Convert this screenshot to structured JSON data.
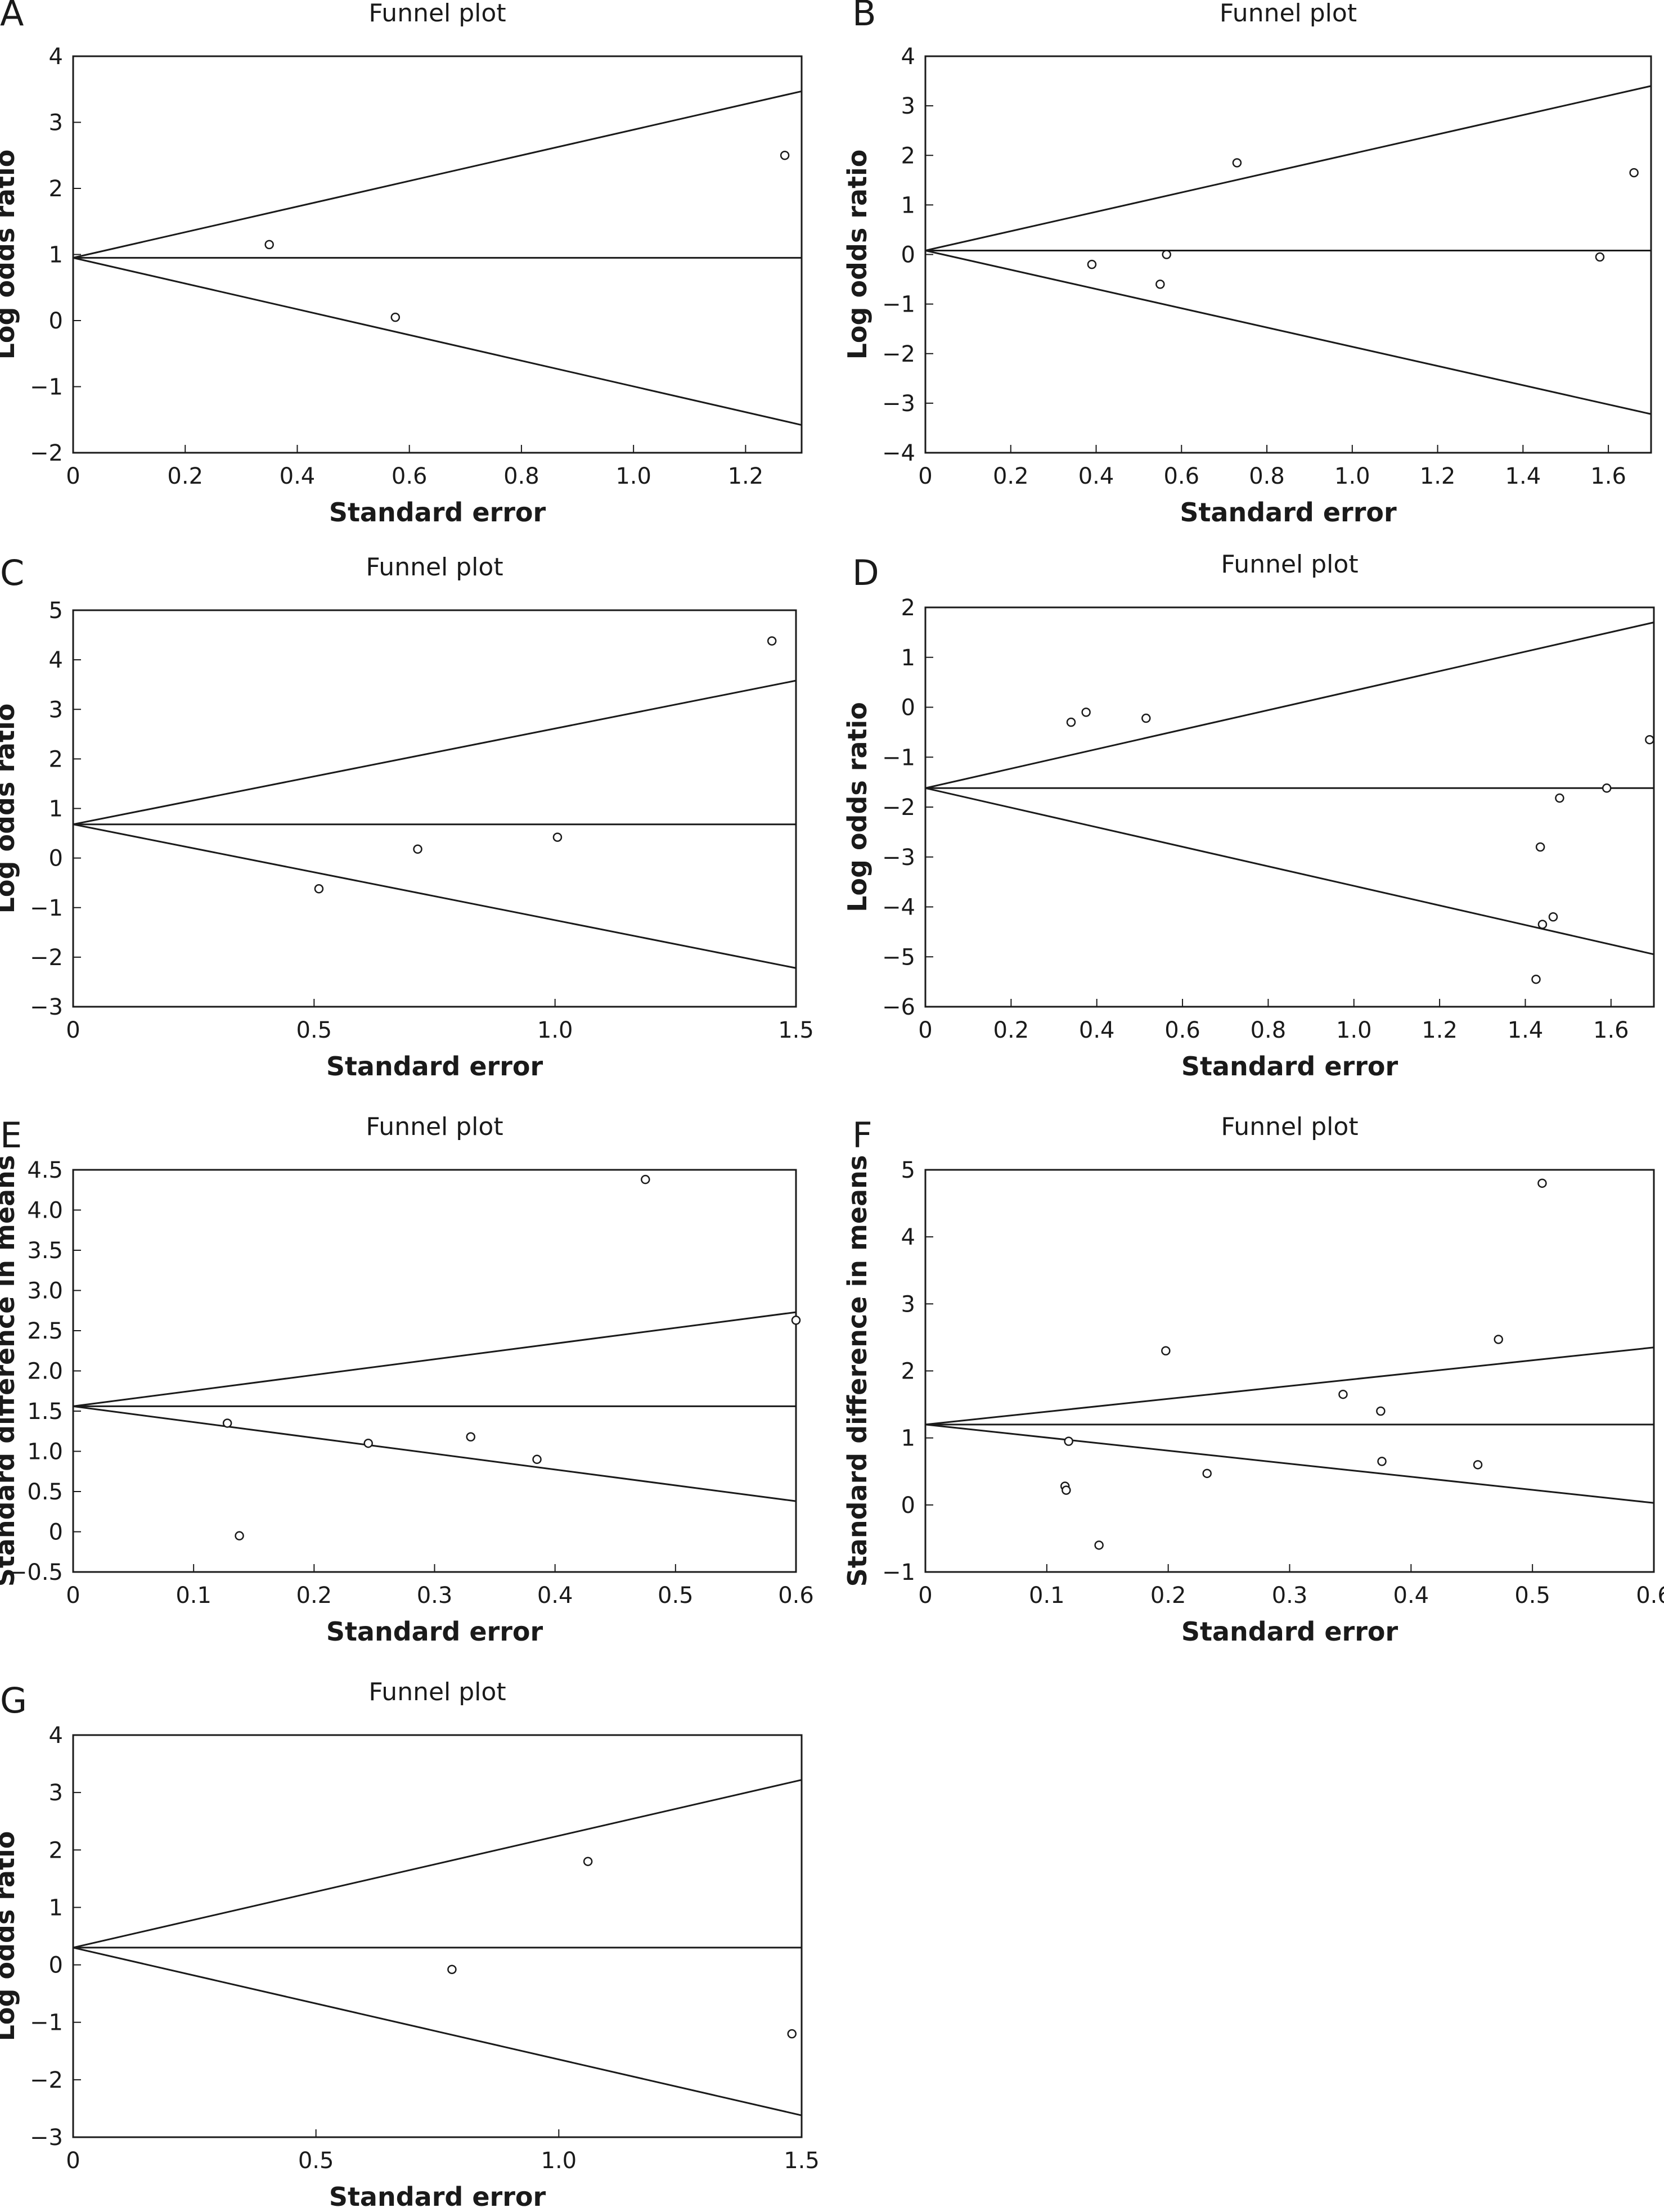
{
  "chart_data": [
    {
      "panel": "A",
      "type": "scatter",
      "title": "Funnel plot",
      "xlabel": "Standard error",
      "ylabel": "Log odds ratio",
      "xlim": [
        0,
        1.3
      ],
      "ylim": [
        -2,
        4
      ],
      "xticks": [
        0,
        0.2,
        0.4,
        0.6,
        0.8,
        1.0,
        1.2
      ],
      "xtick_labels": [
        "0",
        "0.2",
        "0.4",
        "0.6",
        "0.8",
        "1.0",
        "1.2"
      ],
      "yticks": [
        4,
        3,
        2,
        1,
        0,
        -1,
        -2
      ],
      "ytick_labels": [
        "4",
        "3",
        "2",
        "1",
        "0",
        "−1",
        "−2"
      ],
      "center": 0.95,
      "funnel_end": [
        3.47,
        -1.58
      ],
      "points": [
        {
          "x": 0.35,
          "y": 1.15
        },
        {
          "x": 0.575,
          "y": 0.05
        },
        {
          "x": 1.27,
          "y": 2.5
        }
      ]
    },
    {
      "panel": "B",
      "type": "scatter",
      "title": "Funnel plot",
      "xlabel": "Standard error",
      "ylabel": "Log odds ratio",
      "xlim": [
        0,
        1.7
      ],
      "ylim": [
        -4,
        4
      ],
      "xticks": [
        0,
        0.2,
        0.4,
        0.6,
        0.8,
        1.0,
        1.2,
        1.4,
        1.6
      ],
      "xtick_labels": [
        "0",
        "0.2",
        "0.4",
        "0.6",
        "0.8",
        "1.0",
        "1.2",
        "1.4",
        "1.6"
      ],
      "yticks": [
        4,
        3,
        2,
        1,
        0,
        -1,
        -2,
        -3,
        -4
      ],
      "ytick_labels": [
        "4",
        "3",
        "2",
        "1",
        "0",
        "−1",
        "−2",
        "−3",
        "−4"
      ],
      "center": 0.08,
      "funnel_end": [
        3.4,
        -3.22
      ],
      "points": [
        {
          "x": 0.39,
          "y": -0.2
        },
        {
          "x": 0.55,
          "y": -0.6
        },
        {
          "x": 0.565,
          "y": 0.0
        },
        {
          "x": 0.73,
          "y": 1.85
        },
        {
          "x": 1.58,
          "y": -0.05
        },
        {
          "x": 1.66,
          "y": 1.65
        }
      ]
    },
    {
      "panel": "C",
      "type": "scatter",
      "title": "Funnel plot",
      "xlabel": "Standard error",
      "ylabel": "Log odds ratio",
      "xlim": [
        0,
        1.5
      ],
      "ylim": [
        -3,
        5
      ],
      "xticks": [
        0,
        0.5,
        1.0,
        1.5
      ],
      "xtick_labels": [
        "0",
        "0.5",
        "1.0",
        "1.5"
      ],
      "yticks": [
        5,
        4,
        3,
        2,
        1,
        0,
        -1,
        -2,
        -3
      ],
      "ytick_labels": [
        "5",
        "4",
        "3",
        "2",
        "1",
        "0",
        "−1",
        "−2",
        "−3"
      ],
      "center": 0.68,
      "funnel_end": [
        3.58,
        -2.22
      ],
      "points": [
        {
          "x": 0.51,
          "y": -0.62
        },
        {
          "x": 0.715,
          "y": 0.18
        },
        {
          "x": 1.005,
          "y": 0.42
        },
        {
          "x": 1.45,
          "y": 4.38
        }
      ]
    },
    {
      "panel": "D",
      "type": "scatter",
      "title": "Funnel plot",
      "xlabel": "Standard error",
      "ylabel": "Log odds ratio",
      "xlim": [
        0,
        1.7
      ],
      "ylim": [
        -6,
        2
      ],
      "xticks": [
        0,
        0.2,
        0.4,
        0.6,
        0.8,
        1.0,
        1.2,
        1.4,
        1.6
      ],
      "xtick_labels": [
        "0",
        "0.2",
        "0.4",
        "0.6",
        "0.8",
        "1.0",
        "1.2",
        "1.4",
        "1.6"
      ],
      "yticks": [
        2,
        1,
        0,
        -1,
        -2,
        -3,
        -4,
        -5,
        -6
      ],
      "ytick_labels": [
        "2",
        "1",
        "0",
        "−1",
        "−2",
        "−3",
        "−4",
        "−5",
        "−6"
      ],
      "center": -1.62,
      "funnel_end": [
        1.7,
        -4.95
      ],
      "points": [
        {
          "x": 0.34,
          "y": -0.3
        },
        {
          "x": 0.375,
          "y": -0.1
        },
        {
          "x": 0.515,
          "y": -0.22
        },
        {
          "x": 1.69,
          "y": -0.65
        },
        {
          "x": 1.48,
          "y": -1.82
        },
        {
          "x": 1.59,
          "y": -1.62
        },
        {
          "x": 1.435,
          "y": -2.8
        },
        {
          "x": 1.465,
          "y": -4.2
        },
        {
          "x": 1.44,
          "y": -4.35
        },
        {
          "x": 1.425,
          "y": -5.45
        }
      ]
    },
    {
      "panel": "E",
      "type": "scatter",
      "title": "Funnel plot",
      "xlabel": "Standard error",
      "ylabel": "Standard difference in means",
      "xlim": [
        0,
        0.6
      ],
      "ylim": [
        -0.5,
        4.5
      ],
      "xticks": [
        0,
        0.1,
        0.2,
        0.3,
        0.4,
        0.5,
        0.6
      ],
      "xtick_labels": [
        "0",
        "0.1",
        "0.2",
        "0.3",
        "0.4",
        "0.5",
        "0.6"
      ],
      "yticks": [
        4.5,
        4.0,
        3.5,
        3.0,
        2.5,
        2.0,
        1.5,
        1.0,
        0.5,
        0,
        -0.5
      ],
      "ytick_labels": [
        "4.5",
        "4.0",
        "3.5",
        "3.0",
        "2.5",
        "2.0",
        "1.5",
        "1.0",
        "0.5",
        "0",
        "−0.5"
      ],
      "center": 1.56,
      "funnel_end": [
        2.73,
        0.38
      ],
      "points": [
        {
          "x": 0.128,
          "y": 1.35
        },
        {
          "x": 0.138,
          "y": -0.05
        },
        {
          "x": 0.245,
          "y": 1.1
        },
        {
          "x": 0.33,
          "y": 1.18
        },
        {
          "x": 0.385,
          "y": 0.9
        },
        {
          "x": 0.475,
          "y": 4.38
        },
        {
          "x": 0.6,
          "y": 2.63
        }
      ]
    },
    {
      "panel": "F",
      "type": "scatter",
      "title": "Funnel plot",
      "xlabel": "Standard error",
      "ylabel": "Standard difference in means",
      "xlim": [
        0,
        0.6
      ],
      "ylim": [
        -1,
        5
      ],
      "xticks": [
        0,
        0.1,
        0.2,
        0.3,
        0.4,
        0.5,
        0.6
      ],
      "xtick_labels": [
        "0",
        "0.1",
        "0.2",
        "0.3",
        "0.4",
        "0.5",
        "0.6"
      ],
      "yticks": [
        5,
        4,
        3,
        2,
        1,
        0,
        -1
      ],
      "ytick_labels": [
        "5",
        "4",
        "3",
        "2",
        "1",
        "0",
        "−1"
      ],
      "center": 1.2,
      "funnel_end": [
        2.35,
        0.03
      ],
      "points": [
        {
          "x": 0.115,
          "y": 0.28
        },
        {
          "x": 0.116,
          "y": 0.22
        },
        {
          "x": 0.118,
          "y": 0.95
        },
        {
          "x": 0.143,
          "y": -0.6
        },
        {
          "x": 0.198,
          "y": 2.3
        },
        {
          "x": 0.232,
          "y": 0.47
        },
        {
          "x": 0.344,
          "y": 1.65
        },
        {
          "x": 0.375,
          "y": 1.4
        },
        {
          "x": 0.376,
          "y": 0.65
        },
        {
          "x": 0.455,
          "y": 0.6
        },
        {
          "x": 0.472,
          "y": 2.47
        },
        {
          "x": 0.508,
          "y": 4.8
        }
      ]
    },
    {
      "panel": "G",
      "type": "scatter",
      "title": "Funnel plot",
      "xlabel": "Standard error",
      "ylabel": "Log odds ratio",
      "xlim": [
        0,
        1.5
      ],
      "ylim": [
        -3,
        4
      ],
      "xticks": [
        0,
        0.5,
        1.0,
        1.5
      ],
      "xtick_labels": [
        "0",
        "0.5",
        "1.0",
        "1.5"
      ],
      "yticks": [
        4,
        3,
        2,
        1,
        0,
        -1,
        -2,
        -3
      ],
      "ytick_labels": [
        "4",
        "3",
        "2",
        "1",
        "0",
        "−1",
        "−2",
        "−3"
      ],
      "center": 0.3,
      "funnel_end": [
        3.22,
        -2.62
      ],
      "points": [
        {
          "x": 0.78,
          "y": -0.08
        },
        {
          "x": 1.06,
          "y": 1.8
        },
        {
          "x": 1.48,
          "y": -1.2
        }
      ]
    }
  ]
}
